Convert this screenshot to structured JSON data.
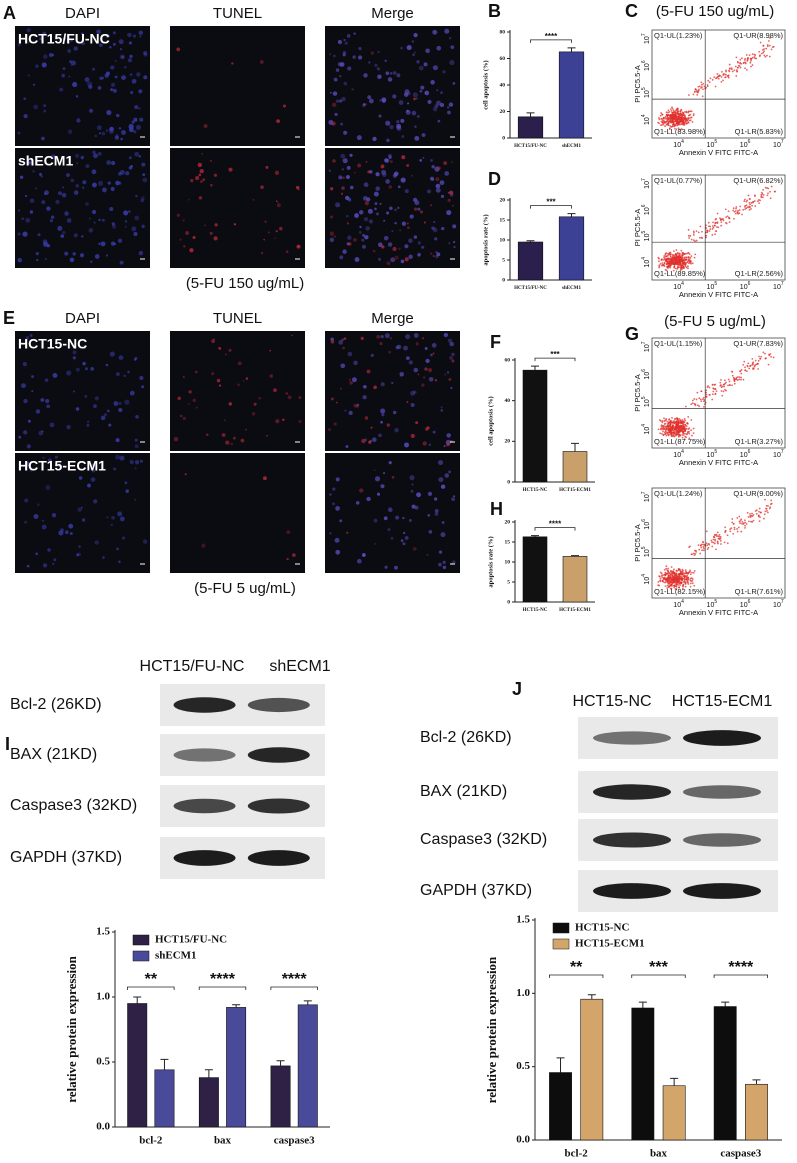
{
  "chart_data": [
    {
      "type": "bar",
      "panel": "B",
      "ylabel": "cell apoptosis (%)",
      "categories": [
        "HCT15/FU-NC",
        "shECM1"
      ],
      "values": [
        16,
        65
      ],
      "errors": [
        3,
        3
      ],
      "colors": [
        "#2b1f4d",
        "#3c4196"
      ],
      "ylim": [
        0,
        80
      ],
      "yticks": [
        0,
        20,
        40,
        60,
        80
      ],
      "significance": "****"
    },
    {
      "type": "bar",
      "panel": "D",
      "ylabel": "apoptosis rate (%)",
      "categories": [
        "HCT15/FU-NC",
        "shECM1"
      ],
      "values": [
        9.5,
        15.8
      ],
      "errors": [
        0.3,
        0.8
      ],
      "colors": [
        "#2b1f4d",
        "#3c4196"
      ],
      "ylim": [
        0,
        20
      ],
      "yticks": [
        0,
        5,
        10,
        15,
        20
      ],
      "significance": "***"
    },
    {
      "type": "bar",
      "panel": "F",
      "ylabel": "cell apoptosis (%)",
      "categories": [
        "HCT15-NC",
        "HCT15-ECM1"
      ],
      "values": [
        55,
        15
      ],
      "errors": [
        2,
        4
      ],
      "colors": [
        "#111111",
        "#c9a06a"
      ],
      "ylim": [
        0,
        60
      ],
      "yticks": [
        0,
        20,
        40,
        60
      ],
      "significance": "***"
    },
    {
      "type": "bar",
      "panel": "H",
      "ylabel": "apoptosis rate (%)",
      "categories": [
        "HCT15-NC",
        "HCT15-ECM1"
      ],
      "values": [
        16.3,
        11.4
      ],
      "errors": [
        0.3,
        0.2
      ],
      "colors": [
        "#111111",
        "#c9a06a"
      ],
      "ylim": [
        0,
        20
      ],
      "yticks": [
        0,
        5,
        10,
        15,
        20
      ],
      "significance": "****"
    },
    {
      "type": "bar",
      "ylabel": "relative protein expression",
      "categories": [
        "bcl-2",
        "bax",
        "caspase3"
      ],
      "series": [
        {
          "name": "HCT15/FU-NC",
          "color": "#2e2145",
          "values": [
            0.95,
            0.38,
            0.47
          ],
          "errors": [
            0.05,
            0.06,
            0.04
          ]
        },
        {
          "name": "shECM1",
          "color": "#4a4a9a",
          "values": [
            0.44,
            0.92,
            0.94
          ],
          "errors": [
            0.08,
            0.02,
            0.03
          ]
        }
      ],
      "ylim": [
        0,
        1.5
      ],
      "yticks": [
        {
          "value": 0,
          "label": "0.0"
        },
        {
          "value": 0.5,
          "label": "0.5"
        },
        {
          "value": 1,
          "label": "1.0"
        },
        {
          "value": 1.5,
          "label": "1.5"
        }
      ],
      "significance": [
        "**",
        "****",
        "****"
      ]
    },
    {
      "type": "bar",
      "ylabel": "relative protein expression",
      "categories": [
        "bcl-2",
        "bax",
        "caspase3"
      ],
      "series": [
        {
          "name": "HCT15-NC",
          "color": "#0d0d0d",
          "values": [
            0.46,
            0.9,
            0.91
          ],
          "errors": [
            0.1,
            0.04,
            0.03
          ]
        },
        {
          "name": "HCT15-ECM1",
          "color": "#d4a56a",
          "values": [
            0.96,
            0.37,
            0.38
          ],
          "errors": [
            0.03,
            0.05,
            0.03
          ]
        }
      ],
      "ylim": [
        0,
        1.5
      ],
      "yticks": [
        {
          "value": 0,
          "label": "0.0"
        },
        {
          "value": 0.5,
          "label": "0.5"
        },
        {
          "value": 1,
          "label": "1.0"
        },
        {
          "value": 1.5,
          "label": "1.5"
        }
      ],
      "significance": [
        "**",
        "***",
        "****"
      ]
    }
  ],
  "microscopy": [
    {
      "panel": "A",
      "columns": [
        "DAPI",
        "TUNEL",
        "Merge"
      ],
      "rows": [
        "HCT15/FU-NC",
        "shECM1"
      ],
      "caption": "(5-FU 150 ug/mL)"
    },
    {
      "panel": "E",
      "columns": [
        "DAPI",
        "TUNEL",
        "Merge"
      ],
      "rows": [
        "HCT15-NC",
        "HCT15-ECM1"
      ],
      "caption": "(5-FU 5 ug/mL)"
    }
  ],
  "flow": [
    {
      "panel": "C",
      "title": "(5-FU 150 ug/mL)",
      "xlabel": "Annexin V FITC FITC-A",
      "ylabel": "PI PC5.5-A",
      "tick_base": "10",
      "tick_exponents": [
        "4",
        "5",
        "6",
        "7"
      ],
      "plots": [
        {
          "UL": "Q1-UL(1.23%)",
          "UR": "Q1-UR(8.98%)",
          "LL": "Q1-LL(83.98%)",
          "LR": "Q1-LR(5.83%)"
        },
        {
          "UL": "Q1-UL(0.77%)",
          "UR": "Q1-UR(6.82%)",
          "LL": "Q1-LL(89.85%)",
          "LR": "Q1-LR(2.56%)"
        }
      ]
    },
    {
      "panel": "G",
      "title": "(5-FU 5 ug/mL)",
      "xlabel": "Annexin V FITC FITC-A",
      "ylabel": "PI PC5.5-A",
      "tick_base": "10",
      "tick_exponents": [
        "4",
        "5",
        "6",
        "7"
      ],
      "plots": [
        {
          "UL": "Q1-UL(1.15%)",
          "UR": "Q1-UR(7.83%)",
          "LL": "Q1-LL(87.75%)",
          "LR": "Q1-LR(3.27%)"
        },
        {
          "UL": "Q1-UL(1.24%)",
          "UR": "Q1-UR(9.00%)",
          "LL": "Q1-LL(82.15%)",
          "LR": "Q1-LR(7.61%)"
        }
      ]
    }
  ],
  "blots": [
    {
      "panel": "I",
      "lanes": [
        "HCT15/FU-NC",
        "shECM1"
      ],
      "bands": [
        "Bcl-2 (26KD)",
        "BAX (21KD)",
        "Caspase3 (32KD)",
        "GAPDH (37KD)"
      ]
    },
    {
      "panel": "J",
      "lanes": [
        "HCT15-NC",
        "HCT15-ECM1"
      ],
      "bands": [
        "Bcl-2 (26KD)",
        "BAX (21KD)",
        "Caspase3 (32KD)",
        "GAPDH (37KD)"
      ]
    }
  ]
}
